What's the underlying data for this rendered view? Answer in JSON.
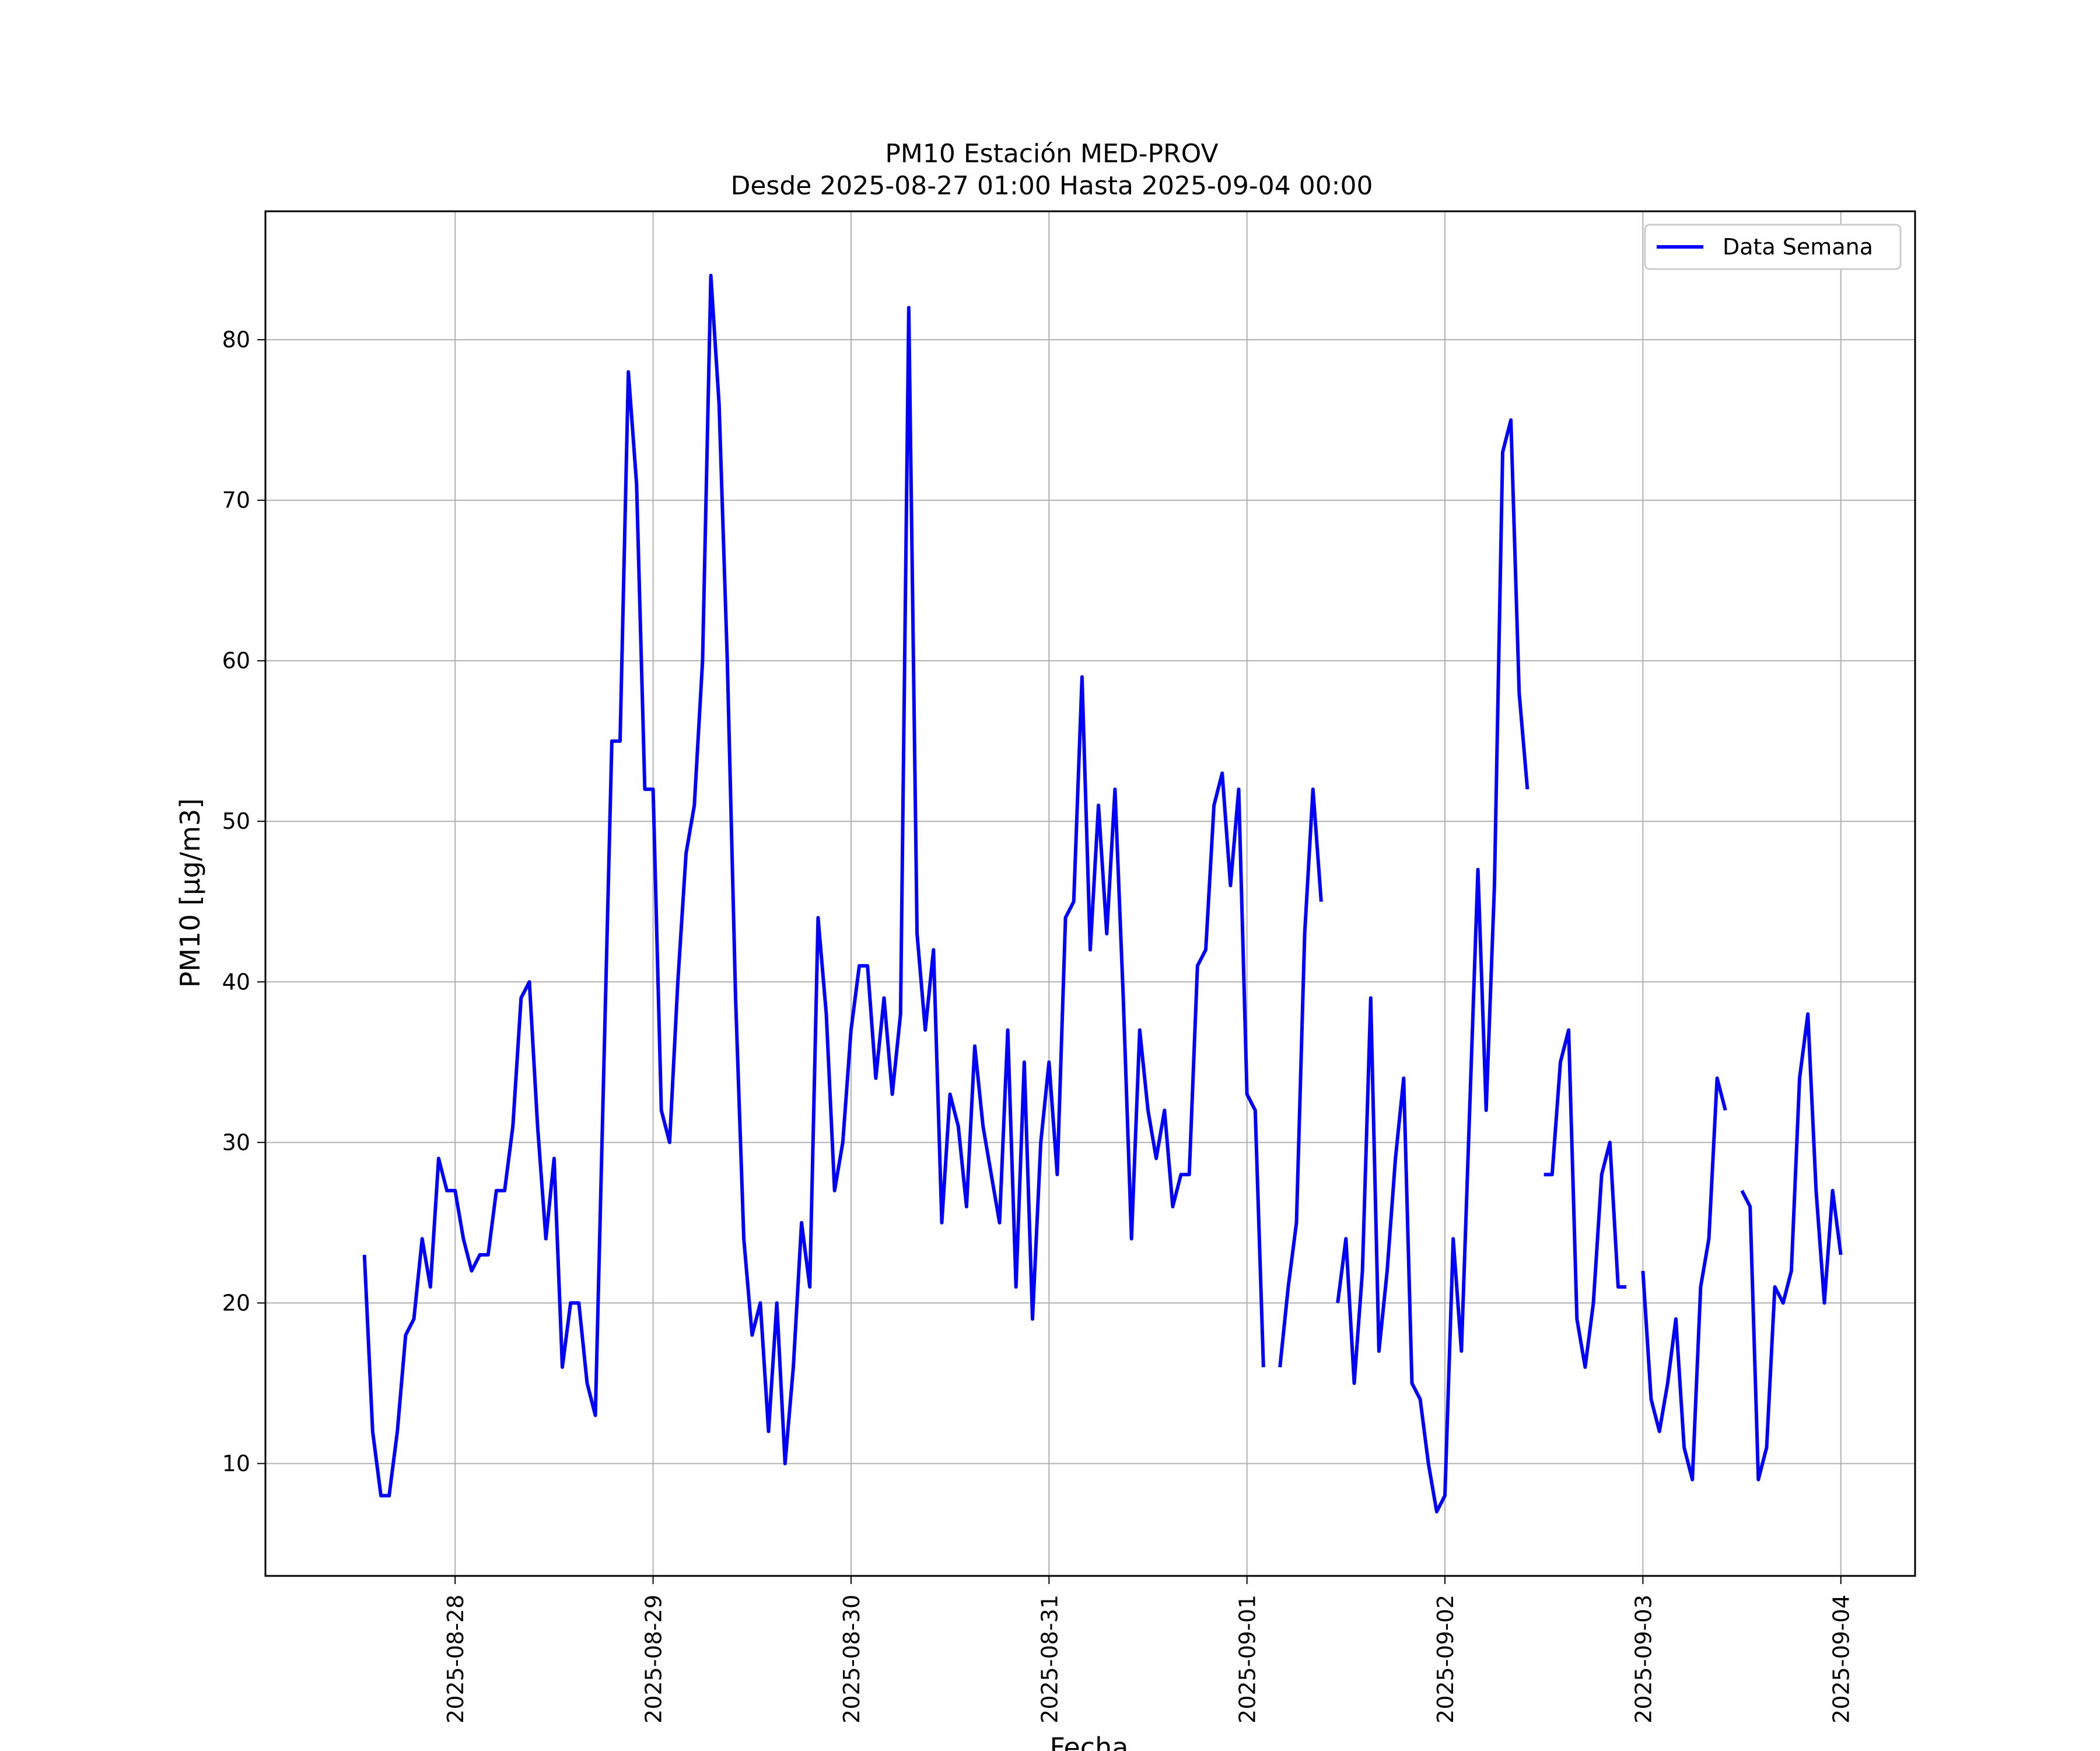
{
  "chart_data": {
    "type": "line",
    "title": "PM10 Estación MED-PROV",
    "subtitle": "Desde 2025-08-27 01:00 Hasta 2025-09-04 00:00",
    "xlabel": "Fecha",
    "ylabel": "PM10 [µg/m3]",
    "grid": true,
    "legend_position": "top-right",
    "x_ticks": [
      "2025-08-28",
      "2025-08-29",
      "2025-08-30",
      "2025-08-31",
      "2025-09-01",
      "2025-09-02",
      "2025-09-03",
      "2025-09-04"
    ],
    "y_ticks": [
      10,
      20,
      30,
      40,
      50,
      60,
      70,
      80
    ],
    "xlim": [
      "2025-08-27 01:00",
      "2025-09-04 09:00"
    ],
    "ylim": [
      3,
      88
    ],
    "series": [
      {
        "name": "Data Semana",
        "color": "#0000ff",
        "x": [
          "2025-08-27 13:00",
          "2025-08-27 14:00",
          "2025-08-27 15:00",
          "2025-08-27 16:00",
          "2025-08-27 17:00",
          "2025-08-27 18:00",
          "2025-08-27 19:00",
          "2025-08-27 20:00",
          "2025-08-27 21:00",
          "2025-08-27 22:00",
          "2025-08-27 23:00",
          "2025-08-28 00:00",
          "2025-08-28 01:00",
          "2025-08-28 02:00",
          "2025-08-28 03:00",
          "2025-08-28 04:00",
          "2025-08-28 05:00",
          "2025-08-28 06:00",
          "2025-08-28 07:00",
          "2025-08-28 08:00",
          "2025-08-28 09:00",
          "2025-08-28 10:00",
          "2025-08-28 11:00",
          "2025-08-28 12:00",
          "2025-08-28 13:00",
          "2025-08-28 14:00",
          "2025-08-28 15:00",
          "2025-08-28 16:00",
          "2025-08-28 17:00",
          "2025-08-28 18:00",
          "2025-08-28 19:00",
          "2025-08-28 20:00",
          "2025-08-28 21:00",
          "2025-08-28 22:00",
          "2025-08-28 23:00",
          "2025-08-29 00:00",
          "2025-08-29 01:00",
          "2025-08-29 02:00",
          "2025-08-29 03:00",
          "2025-08-29 04:00",
          "2025-08-29 05:00",
          "2025-08-29 06:00",
          "2025-08-29 07:00",
          "2025-08-29 08:00",
          "2025-08-29 09:00",
          "2025-08-29 10:00",
          "2025-08-29 11:00",
          "2025-08-29 12:00",
          "2025-08-29 13:00",
          "2025-08-29 14:00",
          "2025-08-29 15:00",
          "2025-08-29 16:00",
          "2025-08-29 17:00",
          "2025-08-29 18:00",
          "2025-08-29 19:00",
          "2025-08-29 20:00",
          "2025-08-29 21:00",
          "2025-08-29 22:00",
          "2025-08-29 23:00",
          "2025-08-30 00:00",
          "2025-08-30 01:00",
          "2025-08-30 02:00",
          "2025-08-30 03:00",
          "2025-08-30 04:00",
          "2025-08-30 05:00",
          "2025-08-30 06:00",
          "2025-08-30 07:00",
          "2025-08-30 08:00",
          "2025-08-30 09:00",
          "2025-08-30 10:00",
          "2025-08-30 11:00",
          "2025-08-30 12:00",
          "2025-08-30 13:00",
          "2025-08-30 14:00",
          "2025-08-30 15:00",
          "2025-08-30 16:00",
          "2025-08-30 17:00",
          "2025-08-30 18:00",
          "2025-08-30 19:00",
          "2025-08-30 20:00",
          "2025-08-30 21:00",
          "2025-08-30 22:00",
          "2025-08-30 23:00",
          "2025-08-31 00:00",
          "2025-08-31 01:00",
          "2025-08-31 02:00",
          "2025-08-31 03:00",
          "2025-08-31 04:00",
          "2025-08-31 05:00",
          "2025-08-31 06:00",
          "2025-08-31 07:00",
          "2025-08-31 08:00",
          "2025-08-31 09:00",
          "2025-08-31 10:00",
          "2025-08-31 11:00",
          "2025-08-31 12:00",
          "2025-08-31 13:00",
          "2025-08-31 14:00",
          "2025-08-31 15:00",
          "2025-08-31 16:00",
          "2025-08-31 17:00",
          "2025-08-31 18:00",
          "2025-08-31 19:00",
          "2025-08-31 20:00",
          "2025-08-31 21:00",
          "2025-08-31 22:00",
          "2025-08-31 23:00",
          "2025-09-01 00:00",
          "2025-09-01 01:00",
          "2025-09-01 02:00",
          "2025-09-01 03:00",
          "2025-09-01 04:00",
          "2025-09-01 05:00",
          "2025-09-01 06:00",
          "2025-09-01 07:00",
          "2025-09-01 08:00",
          "2025-09-01 09:00",
          "2025-09-01 10:00",
          "2025-09-01 11:00",
          "2025-09-01 12:00",
          "2025-09-01 13:00",
          "2025-09-01 14:00",
          "2025-09-01 15:00",
          "2025-09-01 16:00",
          "2025-09-01 17:00",
          "2025-09-01 18:00",
          "2025-09-01 19:00",
          "2025-09-01 20:00",
          "2025-09-01 21:00",
          "2025-09-01 22:00",
          "2025-09-01 23:00",
          "2025-09-02 00:00",
          "2025-09-02 01:00",
          "2025-09-02 02:00",
          "2025-09-02 03:00",
          "2025-09-02 04:00",
          "2025-09-02 05:00",
          "2025-09-02 06:00",
          "2025-09-02 07:00",
          "2025-09-02 08:00",
          "2025-09-02 09:00",
          "2025-09-02 10:00",
          "2025-09-02 11:00",
          "2025-09-02 12:00",
          "2025-09-02 13:00",
          "2025-09-02 14:00",
          "2025-09-02 15:00",
          "2025-09-02 16:00",
          "2025-09-02 17:00",
          "2025-09-02 18:00",
          "2025-09-02 19:00",
          "2025-09-02 20:00",
          "2025-09-02 21:00",
          "2025-09-02 22:00",
          "2025-09-02 23:00",
          "2025-09-03 00:00",
          "2025-09-03 01:00",
          "2025-09-03 02:00",
          "2025-09-03 03:00",
          "2025-09-03 04:00",
          "2025-09-03 05:00",
          "2025-09-03 06:00",
          "2025-09-03 07:00",
          "2025-09-03 08:00",
          "2025-09-03 09:00",
          "2025-09-03 10:00",
          "2025-09-03 11:00",
          "2025-09-03 12:00",
          "2025-09-03 13:00",
          "2025-09-03 14:00",
          "2025-09-03 15:00",
          "2025-09-03 16:00",
          "2025-09-03 17:00",
          "2025-09-03 18:00",
          "2025-09-03 19:00",
          "2025-09-03 20:00",
          "2025-09-03 21:00",
          "2025-09-03 22:00",
          "2025-09-03 23:00",
          "2025-09-04 00:00"
        ],
        "y": [
          23,
          12,
          8,
          8,
          12,
          18,
          19,
          24,
          21,
          29,
          27,
          27,
          24,
          22,
          23,
          23,
          27,
          27,
          31,
          39,
          40,
          31,
          24,
          29,
          16,
          20,
          20,
          15,
          13,
          34,
          55,
          55,
          78,
          71,
          52,
          52,
          32,
          30,
          40,
          48,
          51,
          60,
          84,
          76,
          60,
          39,
          24,
          18,
          20,
          12,
          20,
          10,
          16,
          25,
          21,
          44,
          38,
          27,
          30,
          37,
          41,
          41,
          34,
          39,
          33,
          38,
          82,
          43,
          37,
          42,
          25,
          33,
          31,
          26,
          36,
          31,
          28,
          25,
          37,
          21,
          35,
          19,
          30,
          35,
          28,
          44,
          45,
          59,
          42,
          51,
          43,
          52,
          39,
          24,
          37,
          32,
          29,
          32,
          26,
          28,
          28,
          41,
          42,
          51,
          53,
          46,
          52,
          33,
          32,
          16,
          null,
          16,
          21,
          25,
          43,
          52,
          45,
          null,
          20,
          24,
          15,
          22,
          39,
          17,
          22,
          29,
          34,
          15,
          14,
          10,
          7,
          8,
          24,
          17,
          32,
          47,
          32,
          46,
          73,
          75,
          58,
          52,
          null,
          28,
          28,
          35,
          37,
          19,
          16,
          20,
          28,
          30,
          21,
          21,
          null,
          22,
          14,
          12,
          15,
          19,
          11,
          9,
          21,
          24,
          34,
          32,
          null,
          27,
          26,
          9,
          11,
          21,
          20,
          22,
          34,
          38,
          27,
          20,
          27,
          23
        ]
      }
    ]
  }
}
